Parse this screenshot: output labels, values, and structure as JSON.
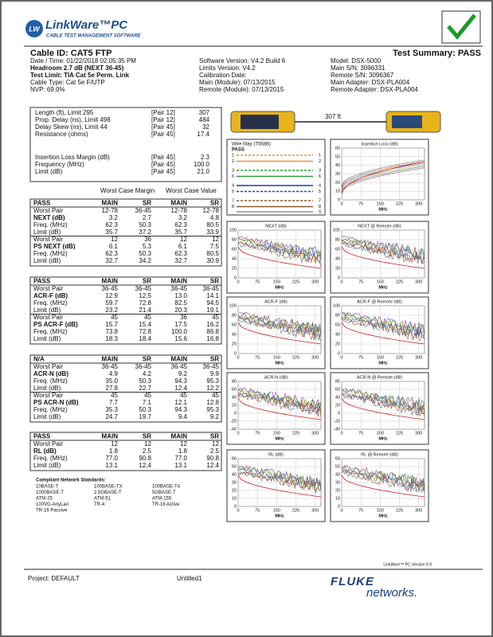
{
  "header": {
    "logo_mark": "LW",
    "logo": "LinkWare™PC",
    "tagline": "CABLE TEST MANAGEMENT SOFTWARE"
  },
  "summary": {
    "cable_id": "Cable ID: CAT5 FTP",
    "result": "Test Summary: PASS",
    "info": [
      [
        "Date / Time: 01/22/2018 02:05:35 PM",
        "Headroom 2.7 dB (NEXT 36-45)",
        "Test Limit: TIA Cat 5e Perm. Link",
        "Cable Type: Cat 5e F/UTP",
        "NVP: 69.0%"
      ],
      [
        "Software Version: V4.2 Build 6",
        "Limits Version: V4.2",
        "Calibration Date:",
        "Main (Module): 07/13/2015",
        "Remote (Module): 07/13/2015"
      ],
      [
        "Model: DSX-5000",
        "Main S/N: 3096331",
        "Remote S/N: 3096367",
        "Main Adapter: DSX-PLA004",
        "Remote Adapter: DSX-PLA004"
      ]
    ]
  },
  "measurements": [
    [
      "Length (ft), Limit 295",
      "[Pair 12]",
      "307"
    ],
    [
      "Prop. Delay (ns), Limit 498",
      "[Pair 12]",
      "484"
    ],
    [
      "Delay Skew (ns), Limit 44",
      "[Pair 45]",
      "32"
    ],
    [
      "Resistance (ohms)",
      "[Pair 45]",
      "17.4"
    ],
    [
      "Insertion Loss Margin (dB)",
      "[Pair 45]",
      "2.3"
    ],
    [
      "Frequency (MHz)",
      "[Pair 45]",
      "100.0"
    ],
    [
      "Limit (dB)",
      "[Pair 45]",
      "21.0"
    ]
  ],
  "table_headers": [
    "Worst Case Margin",
    "Worst Case Value"
  ],
  "tables": [
    {
      "header": [
        "PASS",
        "MAIN",
        "SR",
        "MAIN",
        "SR"
      ],
      "rows": [
        [
          "Worst Pair",
          "12-78",
          "36-45",
          "12-78",
          "12-78"
        ],
        [
          "NEXT (dB)",
          "3.2",
          "2.7",
          "3.2",
          "4.8"
        ],
        [
          "Freq. (MHz)",
          "62.3",
          "50.3",
          "62.3",
          "80.5"
        ],
        [
          "Limit (dB)",
          "35.7",
          "37.2",
          "35.7",
          "33.9"
        ],
        [
          "Worst Pair",
          "12",
          "36",
          "12",
          "12"
        ],
        [
          "PS NEXT (dB)",
          "6.1",
          "5.3",
          "6.1",
          "7.5"
        ],
        [
          "Freq. (MHz)",
          "62.3",
          "50.3",
          "62.3",
          "80.5"
        ],
        [
          "Limit (dB)",
          "32.7",
          "34.2",
          "32.7",
          "30.9"
        ]
      ]
    },
    {
      "header": [
        "PASS",
        "MAIN",
        "SR",
        "MAIN",
        "SR"
      ],
      "rows": [
        [
          "Worst Pair",
          "36-45",
          "36-45",
          "36-45",
          "36-45"
        ],
        [
          "ACR-F (dB)",
          "12.9",
          "12.5",
          "13.0",
          "14.1"
        ],
        [
          "Freq. (MHz)",
          "59.7",
          "72.8",
          "82.5",
          "94.5"
        ],
        [
          "Limit (dB)",
          "23.2",
          "21.4",
          "20.3",
          "19.1"
        ],
        [
          "Worst Pair",
          "45",
          "45",
          "36",
          "45"
        ],
        [
          "PS ACR-F (dB)",
          "15.7",
          "15.4",
          "17.5",
          "16.2"
        ],
        [
          "Freq. (MHz)",
          "73.8",
          "72.8",
          "100.0",
          "86.8"
        ],
        [
          "Limit (dB)",
          "18.3",
          "18.4",
          "15.6",
          "16.8"
        ]
      ]
    },
    {
      "header": [
        "N/A",
        "MAIN",
        "SR",
        "MAIN",
        "SR"
      ],
      "rows": [
        [
          "Worst Pair",
          "36-45",
          "36-45",
          "36-45",
          "36-45"
        ],
        [
          "ACR-N (dB)",
          "4.9",
          "4.2",
          "9.2",
          "9.9"
        ],
        [
          "Freq. (MHz)",
          "35.0",
          "50.3",
          "94.3",
          "95.3"
        ],
        [
          "Limit (dB)",
          "27.8",
          "22.7",
          "12.4",
          "12.2"
        ],
        [
          "Worst Pair",
          "45",
          "45",
          "45",
          "45"
        ],
        [
          "PS ACR-N (dB)",
          "7.7",
          "7.1",
          "12.1",
          "12.8"
        ],
        [
          "Freq. (MHz)",
          "35.3",
          "50.3",
          "94.3",
          "95.3"
        ],
        [
          "Limit (dB)",
          "24.7",
          "19.7",
          "9.4",
          "9.2"
        ]
      ]
    },
    {
      "header": [
        "PASS",
        "MAIN",
        "SR",
        "MAIN",
        "SR"
      ],
      "rows": [
        [
          "Worst Pair",
          "12",
          "12",
          "12",
          "12"
        ],
        [
          "RL (dB)",
          "1.8",
          "2.5",
          "1.8",
          "2.5"
        ],
        [
          "Freq. (MHz)",
          "77.0",
          "90.8",
          "77.0",
          "90.8"
        ],
        [
          "Limit (dB)",
          "13.1",
          "12.4",
          "13.1",
          "12.4"
        ]
      ]
    }
  ],
  "standards": {
    "title": "Compliant Network Standards:",
    "items": [
      "10BASE-T",
      "100BASE-TX",
      "100BASE-T4",
      "1000BASE-T",
      "2.5GBASE-T",
      "5GBASE-T",
      "ATM-25",
      "ATM-51",
      "ATM-155",
      "100VG-AnyLan",
      "TR-4",
      "TR-16 Active",
      "TR-16 Passive"
    ]
  },
  "length_label": "307 ft",
  "wire_map": {
    "title": "Wire Map (T568B)",
    "result": "PASS",
    "pins": [
      "1",
      "2",
      "3",
      "6",
      "4",
      "5",
      "7",
      "8"
    ],
    "shield": "S"
  },
  "panels": [
    {
      "title": "Insertion Loss (dB)",
      "yticks": [
        60,
        50,
        40,
        30,
        20,
        10,
        0
      ],
      "xticks": [
        0,
        75,
        150,
        225,
        300
      ],
      "xlabel": "MHz"
    },
    {
      "title": "NEXT (dB)",
      "yticks": [
        100,
        80,
        60,
        40,
        20,
        0
      ],
      "xticks": [
        0,
        75,
        150,
        225,
        300
      ],
      "xlabel": "MHz"
    },
    {
      "title": "NEXT @ Remote (dB)",
      "yticks": [
        100,
        80,
        60,
        40,
        20,
        0
      ],
      "xticks": [
        0,
        75,
        150,
        225,
        300
      ],
      "xlabel": "MHz"
    },
    {
      "title": "ACR-F (dB)",
      "yticks": [
        100,
        80,
        60,
        40,
        20,
        0
      ],
      "xticks": [
        0,
        75,
        150,
        225,
        300
      ],
      "xlabel": "MHz"
    },
    {
      "title": "ACR-F @ Remote (dB)",
      "yticks": [
        100,
        80,
        60,
        40,
        20,
        0
      ],
      "xticks": [
        0,
        75,
        150,
        225,
        300
      ],
      "xlabel": "MHz"
    },
    {
      "title": "ACR-N (dB)",
      "yticks": [
        80,
        60,
        40,
        20,
        0,
        -20,
        -40
      ],
      "xticks": [
        0,
        75,
        150,
        225,
        300
      ],
      "xlabel": "MHz"
    },
    {
      "title": "ACR-N @ Remote (dB)",
      "yticks": [
        80,
        60,
        40,
        20,
        0,
        -20,
        -40
      ],
      "xticks": [
        0,
        75,
        150,
        225,
        300
      ],
      "xlabel": "MHz"
    },
    {
      "title": "RL (dB)",
      "yticks": [
        60,
        50,
        40,
        30,
        20,
        10,
        0
      ],
      "xticks": [
        0,
        75,
        150,
        225,
        300
      ],
      "xlabel": "MHz"
    },
    {
      "title": "RL @ Remote (dB)",
      "yticks": [
        60,
        50,
        40,
        30,
        20,
        10,
        0
      ],
      "xticks": [
        0,
        75,
        150,
        225,
        300
      ],
      "xlabel": "MHz"
    }
  ],
  "footer": {
    "version": "LinkWare™ PC Version 9.9",
    "project": "Project: DEFAULT",
    "file": "Untitled1",
    "brand": "FLUKE",
    "brand_sub": "networks."
  }
}
